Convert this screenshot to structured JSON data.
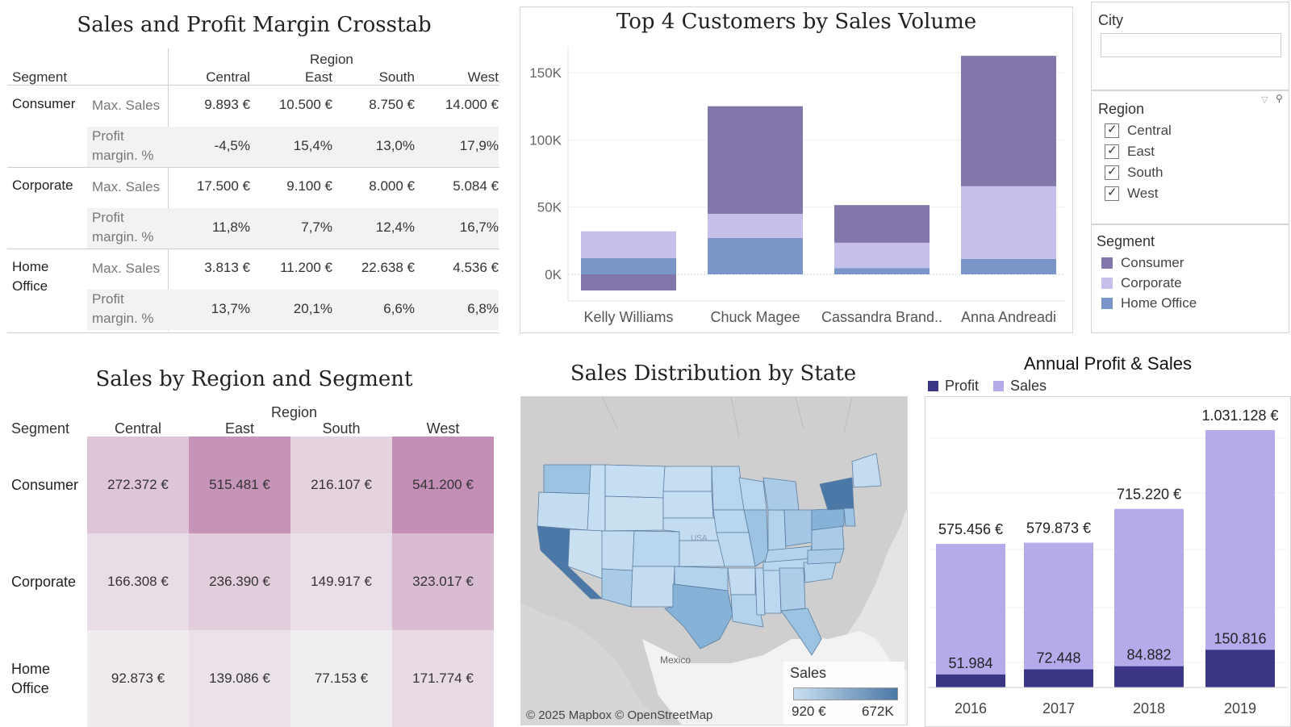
{
  "crosstab": {
    "title": "Sales and Profit Margin Crosstab",
    "segment_header": "Segment",
    "region_header": "Region",
    "regions": [
      "Central",
      "East",
      "South",
      "West"
    ],
    "rows": [
      {
        "segment": "Consumer",
        "segment_line2": "",
        "max_sales_label": "Max. Sales",
        "profit_label_1": "Profit",
        "profit_label_2": "margin. %",
        "max_sales": [
          "9.893 €",
          "10.500 €",
          "8.750 €",
          "14.000 €"
        ],
        "profit_margin": [
          "-4,5%",
          "15,4%",
          "13,0%",
          "17,9%"
        ]
      },
      {
        "segment": "Corporate",
        "segment_line2": "",
        "max_sales_label": "Max. Sales",
        "profit_label_1": "Profit",
        "profit_label_2": "margin. %",
        "max_sales": [
          "17.500 €",
          "9.100 €",
          "8.000 €",
          "5.084 €"
        ],
        "profit_margin": [
          "11,8%",
          "7,7%",
          "12,4%",
          "16,7%"
        ]
      },
      {
        "segment": "Home",
        "segment_line2": "Office",
        "max_sales_label": "Max. Sales",
        "profit_label_1": "Profit",
        "profit_label_2": "margin. %",
        "max_sales": [
          "3.813 €",
          "11.200 €",
          "22.638 €",
          "4.536 €"
        ],
        "profit_margin": [
          "13,7%",
          "20,1%",
          "6,6%",
          "6,8%"
        ]
      }
    ]
  },
  "chart_data": [
    {
      "type": "bar",
      "stacked": true,
      "title": "Top 4 Customers by Sales Volume",
      "categories": [
        "Kelly Williams",
        "Chuck Magee",
        "Cassandra Brand..",
        "Anna Andreadi"
      ],
      "ylim": [
        -12000,
        160000
      ],
      "yticks": [
        "150K",
        "100K",
        "50K",
        "0K"
      ],
      "ytick_values": [
        150000,
        100000,
        50000,
        0
      ],
      "series": [
        {
          "name": "Consumer",
          "color": "#8276ab",
          "values": [
            -12000,
            80000,
            28000,
            97000
          ]
        },
        {
          "name": "Corporate",
          "color": "#c6bfea",
          "values": [
            20000,
            18000,
            19000,
            54000
          ]
        },
        {
          "name": "Home Office",
          "color": "#7a96c9",
          "values": [
            12000,
            27000,
            4500,
            11500
          ]
        }
      ]
    },
    {
      "type": "bar",
      "title": "Annual Profit & Sales",
      "categories": [
        "2016",
        "2017",
        "2018",
        "2019"
      ],
      "series": [
        {
          "name": "Profit",
          "color": "#3b3585",
          "values": [
            51984,
            72448,
            84882,
            150816
          ],
          "labels": [
            "51.984",
            "72.448",
            "84.882",
            "150.816"
          ]
        },
        {
          "name": "Sales",
          "color": "#b5aaea",
          "values": [
            575456,
            579873,
            715220,
            1031128
          ],
          "labels": [
            "575.456 €",
            "579.873 €",
            "715.220 €",
            "1.031.128 €"
          ]
        }
      ],
      "ylim": [
        0,
        1100000
      ],
      "legend": "top-left"
    },
    {
      "type": "heatmap",
      "title": "Sales by Region and Segment",
      "segment_header": "Segment",
      "region_header": "Region",
      "x": [
        "Central",
        "East",
        "South",
        "West"
      ],
      "y": [
        "Consumer",
        "Corporate",
        "Home Office"
      ],
      "y_display": [
        [
          "Consumer"
        ],
        [
          "Corporate"
        ],
        [
          "Home",
          "Office"
        ]
      ],
      "values": [
        [
          272372,
          515481,
          216107,
          541200
        ],
        [
          166308,
          236390,
          149917,
          323017
        ],
        [
          92873,
          139086,
          77153,
          171774
        ]
      ],
      "labels": [
        [
          "272.372 €",
          "515.481 €",
          "216.107 €",
          "541.200 €"
        ],
        [
          "166.308 €",
          "236.390 €",
          "149.917 €",
          "323.017 €"
        ],
        [
          "92.873 €",
          "139.086 €",
          "77.153 €",
          "171.774 €"
        ]
      ],
      "color_low": "#f1eef1",
      "color_high": "#c48fb6"
    }
  ],
  "filters": {
    "city": {
      "title": "City",
      "value": ""
    },
    "region": {
      "title": "Region",
      "items": [
        "Central",
        "East",
        "South",
        "West"
      ]
    },
    "segment": {
      "title": "Segment",
      "items": [
        {
          "label": "Consumer",
          "color": "#8276ab"
        },
        {
          "label": "Corporate",
          "color": "#c6bfea"
        },
        {
          "label": "Home Office",
          "color": "#7a96c9"
        }
      ]
    }
  },
  "map": {
    "title": "Sales Distribution by State",
    "legend_title": "Sales",
    "legend_min": "920 €",
    "legend_max": "672K",
    "attribution": "© 2025 Mapbox © OpenStreetMap",
    "label_mexico": "Mexico",
    "label_usa": "USA",
    "color_low": "#c9e0f1",
    "color_high": "#4b78a6"
  }
}
